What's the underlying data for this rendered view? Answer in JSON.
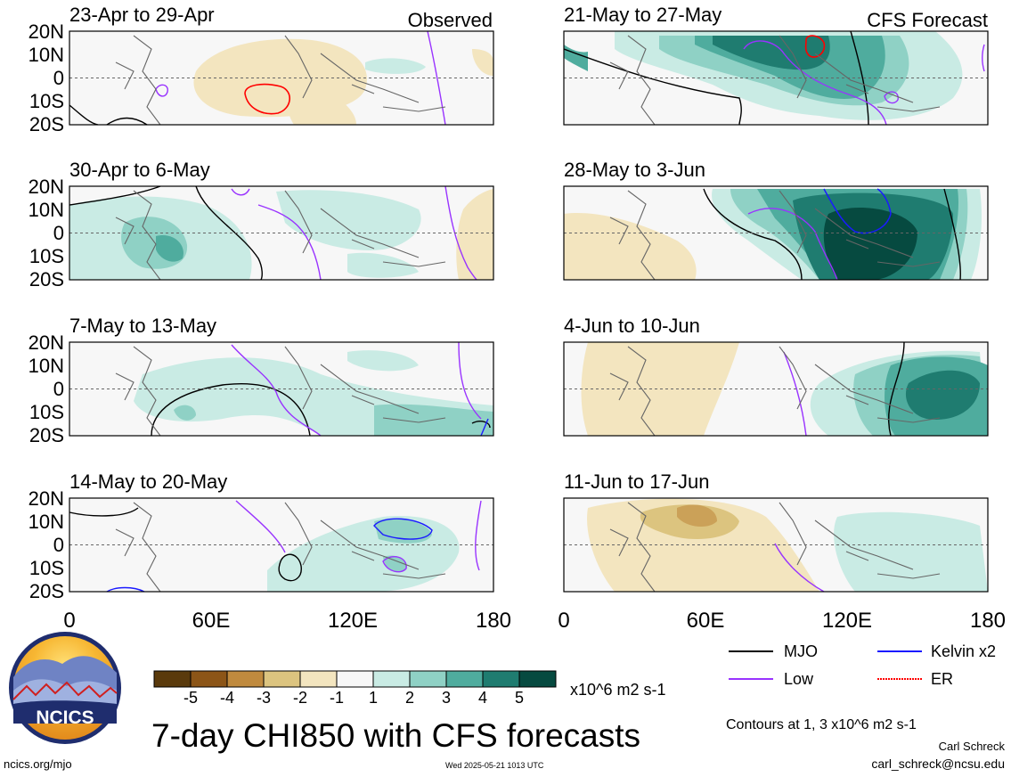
{
  "figure": {
    "title": "7-day CHI850 with CFS forecasts",
    "observed_label": "Observed",
    "forecast_label": "CFS Forecast",
    "units_label": "x10^6 m2 s-1",
    "contour_note": "Contours at 1, 3 x10^6 m2 s-1",
    "author": "Carl Schreck",
    "email": "carl_schreck@ncsu.edu",
    "website": "ncics.org/mjo",
    "timestamp": "Wed 2025-05-21 1013 UTC",
    "logo_text": "NCICS"
  },
  "axes": {
    "lat_ticks": [
      "20N",
      "10N",
      "0",
      "10S",
      "20S"
    ],
    "lon_ticks": [
      "0",
      "60E",
      "120E",
      "180"
    ]
  },
  "colorbar": {
    "tick_labels": [
      "-5",
      "-4",
      "-3",
      "-2",
      "-1",
      "1",
      "2",
      "3",
      "4",
      "5"
    ],
    "colors": [
      "#5a3a0c",
      "#8c5517",
      "#c08a3e",
      "#dcc47f",
      "#f3e5bf",
      "#f7f7f7",
      "#c9ebe4",
      "#8fd1c5",
      "#4fac9e",
      "#1f7c70",
      "#064a40"
    ]
  },
  "legend": {
    "items": [
      {
        "label": "MJO",
        "color": "#000000"
      },
      {
        "label": "Kelvin x2",
        "color": "#1a1aff"
      },
      {
        "label": "Low",
        "color": "#9933ff"
      },
      {
        "label": "ER",
        "color": "#ff0000"
      }
    ]
  },
  "panels": [
    {
      "title": "23-Apr to 29-Apr",
      "kind": "observed"
    },
    {
      "title": "30-Apr to 6-May",
      "kind": "observed"
    },
    {
      "title": "7-May to 13-May",
      "kind": "observed"
    },
    {
      "title": "14-May to 20-May",
      "kind": "observed"
    },
    {
      "title": "21-May to 27-May",
      "kind": "forecast"
    },
    {
      "title": "28-May to 3-Jun",
      "kind": "forecast"
    },
    {
      "title": "4-Jun to 10-Jun",
      "kind": "forecast"
    },
    {
      "title": "11-Jun to 17-Jun",
      "kind": "forecast"
    }
  ]
}
